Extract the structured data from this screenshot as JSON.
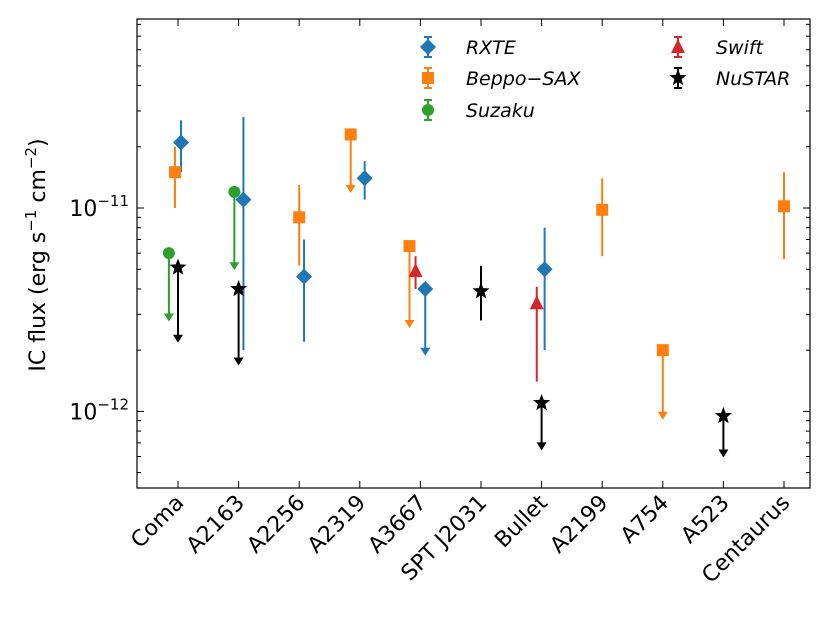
{
  "chart_data": {
    "type": "scatter",
    "ylabel": {
      "main": "IC flux (erg s",
      "exp1": "−1",
      "mid": " cm",
      "exp2": "−2",
      "end": ")"
    },
    "yscale": "log",
    "ylim": [
      4.2e-13,
      8.5e-11
    ],
    "yticks": [
      {
        "value": 1e-11,
        "base": "10",
        "exp": "−11"
      },
      {
        "value": 1e-12,
        "base": "10",
        "exp": "−12"
      }
    ],
    "categories": [
      "Coma",
      "A2163",
      "A2256",
      "A2319",
      "A3667",
      "SPT J2031",
      "Bullet",
      "A2199",
      "A754",
      "A523",
      "Centaurus"
    ],
    "legend": {
      "position": "top-right",
      "columns": 2
    },
    "colors": {
      "RXTE": "#1f77b4",
      "Beppo-SAX": "#ff7f0e",
      "Suzaku": "#2ca02c",
      "Swift": "#d62728",
      "NuSTAR": "#000000"
    },
    "series": [
      {
        "name": "RXTE",
        "legend_label": "RXTE",
        "marker": "diamond",
        "points": [
          {
            "cat": 0,
            "offset": 0.05,
            "y": 2.1e-11,
            "lo": 1.5e-11,
            "hi": 2.7e-11
          },
          {
            "cat": 1,
            "offset": 0.08,
            "y": 1.1e-11,
            "lo": 2e-12,
            "hi": 2.8e-11
          },
          {
            "cat": 2,
            "offset": 0.08,
            "y": 4.6e-12,
            "lo": 2.2e-12,
            "hi": 7e-12
          },
          {
            "cat": 3,
            "offset": 0.08,
            "y": 1.4e-11,
            "lo": 1.1e-11,
            "hi": 1.7e-11
          },
          {
            "cat": 4,
            "offset": 0.08,
            "y": 4e-12,
            "upper_limit": true,
            "arrow_to": 1.9e-12
          },
          {
            "cat": 6,
            "offset": 0.05,
            "y": 5e-12,
            "lo": 2e-12,
            "hi": 8e-12
          }
        ]
      },
      {
        "name": "Beppo-SAX",
        "legend_label": "Beppo−SAX",
        "marker": "square",
        "points": [
          {
            "cat": 0,
            "offset": -0.05,
            "y": 1.5e-11,
            "lo": 1e-11,
            "hi": 2e-11
          },
          {
            "cat": 2,
            "offset": 0.0,
            "y": 9e-12,
            "lo": 5.2e-12,
            "hi": 1.3e-11
          },
          {
            "cat": 3,
            "offset": -0.15,
            "y": 2.3e-11,
            "upper_limit": true,
            "arrow_to": 1.2e-11
          },
          {
            "cat": 4,
            "offset": -0.18,
            "y": 6.5e-12,
            "upper_limit": true,
            "arrow_to": 2.6e-12
          },
          {
            "cat": 7,
            "offset": 0.0,
            "y": 9.8e-12,
            "lo": 5.8e-12,
            "hi": 1.4e-11
          },
          {
            "cat": 8,
            "offset": 0.0,
            "y": 2e-12,
            "upper_limit": true,
            "arrow_to": 9.2e-13
          },
          {
            "cat": 10,
            "offset": 0.0,
            "y": 1.02e-11,
            "lo": 5.6e-12,
            "hi": 1.5e-11
          }
        ]
      },
      {
        "name": "Suzaku",
        "legend_label": "Suzaku",
        "marker": "circle",
        "points": [
          {
            "cat": 0,
            "offset": -0.15,
            "y": 6e-12,
            "upper_limit": true,
            "arrow_to": 2.8e-12
          },
          {
            "cat": 1,
            "offset": -0.07,
            "y": 1.2e-11,
            "upper_limit": true,
            "arrow_to": 5e-12
          }
        ]
      },
      {
        "name": "Swift",
        "legend_label": "Swift",
        "marker": "triangle",
        "points": [
          {
            "cat": 4,
            "offset": -0.08,
            "y": 4.9e-12,
            "lo": 4e-12,
            "hi": 5.8e-12
          },
          {
            "cat": 6,
            "offset": -0.08,
            "y": 3.4e-12,
            "lo": 1.4e-12,
            "hi": 4.1e-12
          }
        ]
      },
      {
        "name": "NuSTAR",
        "legend_label": "NuSTAR",
        "marker": "star",
        "points": [
          {
            "cat": 0,
            "offset": 0.0,
            "y": 5.1e-12,
            "upper_limit": true,
            "arrow_to": 2.2e-12
          },
          {
            "cat": 1,
            "offset": 0.0,
            "y": 4e-12,
            "upper_limit": true,
            "arrow_to": 1.7e-12
          },
          {
            "cat": 5,
            "offset": 0.0,
            "y": 3.9e-12,
            "lo": 2.8e-12,
            "hi": 5.2e-12
          },
          {
            "cat": 6,
            "offset": 0.0,
            "y": 1.1e-12,
            "upper_limit": true,
            "arrow_to": 6.5e-13
          },
          {
            "cat": 9,
            "offset": 0.0,
            "y": 9.5e-13,
            "upper_limit": true,
            "arrow_to": 6e-13
          }
        ]
      }
    ]
  }
}
